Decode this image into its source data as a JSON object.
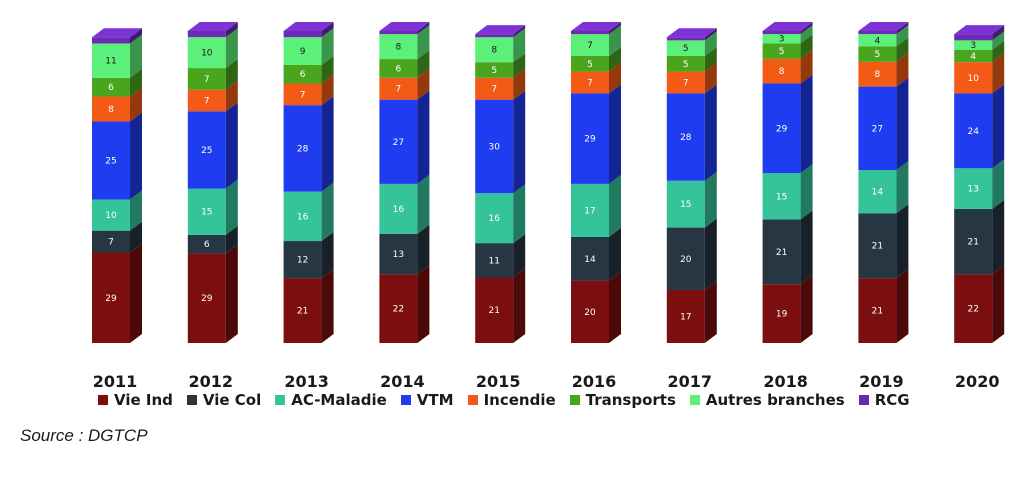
{
  "chart_data": {
    "type": "bar",
    "stacked": true,
    "categories": [
      "2011",
      "2012",
      "2013",
      "2014",
      "2015",
      "2016",
      "2017",
      "2018",
      "2019",
      "2020"
    ],
    "series": [
      {
        "name": "Vie Ind",
        "color": "#7b0e0e",
        "values": [
          29,
          29,
          21,
          22,
          21,
          20,
          17,
          19,
          21,
          22
        ]
      },
      {
        "name": "Vie Col",
        "color": "#263642",
        "values": [
          7,
          6,
          12,
          13,
          11,
          14,
          20,
          21,
          21,
          21
        ]
      },
      {
        "name": "AC-Maladie",
        "color": "#35c49a",
        "values": [
          10,
          15,
          16,
          16,
          16,
          17,
          15,
          15,
          14,
          13
        ]
      },
      {
        "name": "VTM",
        "color": "#1f3cf0",
        "values": [
          25,
          25,
          28,
          27,
          30,
          29,
          28,
          29,
          27,
          24
        ]
      },
      {
        "name": "Incendie",
        "color": "#f25a15",
        "values": [
          8,
          7,
          7,
          7,
          7,
          7,
          7,
          8,
          8,
          10
        ]
      },
      {
        "name": "Transports",
        "color": "#4aa51e",
        "values": [
          6,
          7,
          6,
          6,
          5,
          5,
          5,
          5,
          5,
          4
        ]
      },
      {
        "name": "Autres branches",
        "color": "#5cf07a",
        "values": [
          11,
          10,
          9,
          8,
          8,
          7,
          5,
          3,
          4,
          3
        ]
      },
      {
        "name": "RCG",
        "color": "#6a2bb5",
        "values": [
          2,
          2,
          2,
          1,
          1,
          1,
          1,
          1,
          1,
          2
        ]
      }
    ],
    "value_labels_shown_for": [
      "Vie Ind",
      "Vie Col",
      "AC-Maladie",
      "VTM",
      "Incendie",
      "Transports",
      "Autres branches"
    ],
    "ylim": [
      0,
      100
    ],
    "grid": false,
    "legend_position": "bottom",
    "source": "Source : DGTCP"
  }
}
